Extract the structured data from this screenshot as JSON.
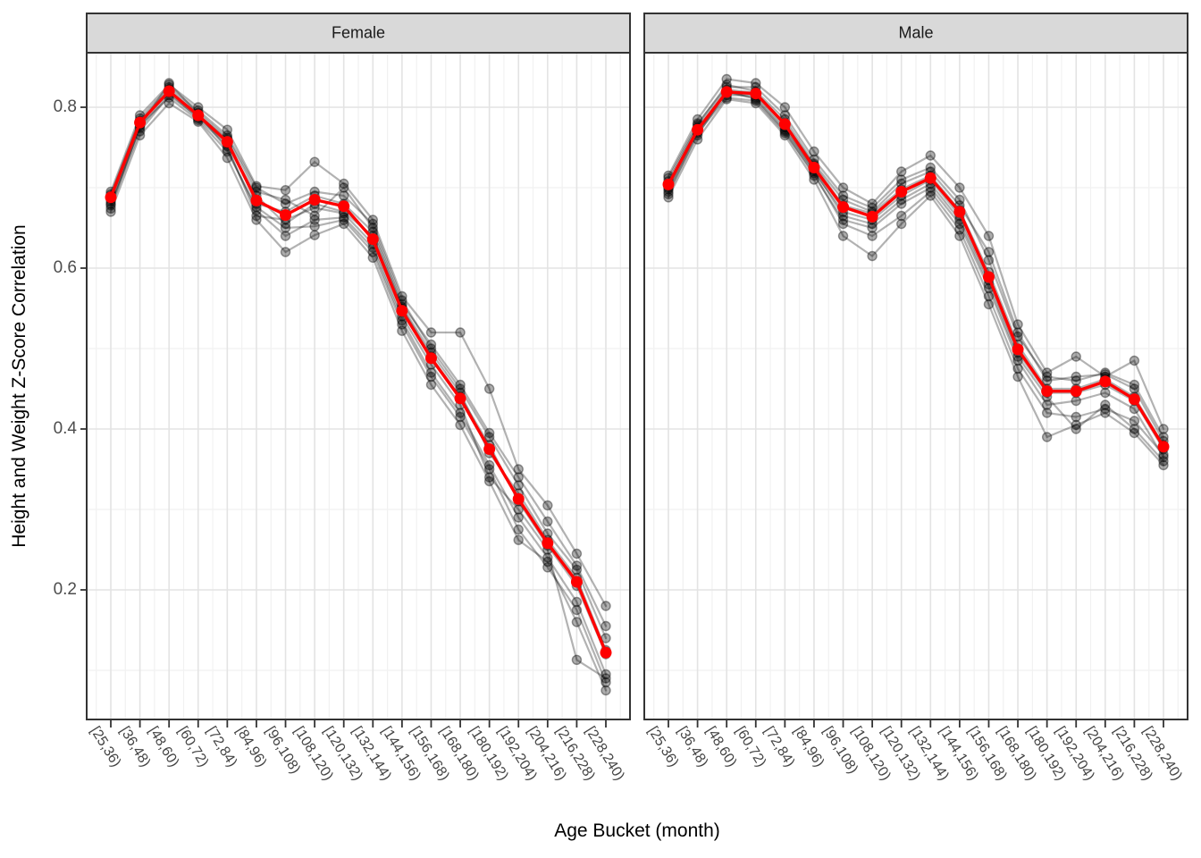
{
  "figure": {
    "y_axis_title": "Height and Weight Z-Score Correlation",
    "x_axis_title": "Age Bucket (month)",
    "facets": [
      "Female",
      "Male"
    ]
  },
  "theme": {
    "mean_color": "#FF0000",
    "individual_color": "#000000",
    "individual_alpha": 0.3,
    "strip_fill": "#D9D9D9",
    "panel_border": "#333333",
    "grid_major": "#E3E3E3",
    "grid_minor": "#F1F1F1",
    "tick_color": "#333333",
    "tick_text_color": "#4D4D4D"
  },
  "chart_data": {
    "type": "line",
    "title": "",
    "xlabel": "Age Bucket (month)",
    "ylabel": "Height and Weight Z-Score Correlation",
    "legend_position": "none",
    "grid": true,
    "facet_labels": [
      "Female",
      "Male"
    ],
    "categories": [
      "[25,36)",
      "[36,48)",
      "[48,60)",
      "[60,72)",
      "[72,84)",
      "[84,96)",
      "[96,108)",
      "[108,120)",
      "[120,132)",
      "[132,144)",
      "[144,156)",
      "[156,168)",
      "[168,180)",
      "[180,192)",
      "[192,204)",
      "[204,216)",
      "[216,228)",
      "[228,240)"
    ],
    "y_ticks": [
      0.2,
      0.4,
      0.6,
      0.8
    ],
    "y_minor_ticks": [
      0.1,
      0.3,
      0.5,
      0.7
    ],
    "ylim": [
      0.04,
      0.868
    ],
    "panels": [
      {
        "facet": "Female",
        "mean": [
          0.688,
          0.781,
          0.82,
          0.79,
          0.757,
          0.684,
          0.666,
          0.685,
          0.677,
          0.636,
          0.547,
          0.488,
          0.438,
          0.375,
          0.313,
          0.258,
          0.21,
          0.122
        ],
        "individuals": [
          [
            0.678,
            0.77,
            0.815,
            0.788,
            0.755,
            0.69,
            0.655,
            0.68,
            0.67,
            0.64,
            0.55,
            0.49,
            0.44,
            0.38,
            0.31,
            0.255,
            0.205,
            0.12
          ],
          [
            0.692,
            0.786,
            0.825,
            0.796,
            0.765,
            0.7,
            0.68,
            0.695,
            0.69,
            0.655,
            0.56,
            0.5,
            0.45,
            0.39,
            0.33,
            0.27,
            0.225,
            0.14
          ],
          [
            0.683,
            0.776,
            0.83,
            0.792,
            0.748,
            0.672,
            0.64,
            0.66,
            0.663,
            0.625,
            0.535,
            0.47,
            0.42,
            0.355,
            0.29,
            0.24,
            0.185,
            0.095
          ],
          [
            0.67,
            0.765,
            0.805,
            0.782,
            0.737,
            0.66,
            0.62,
            0.641,
            0.655,
            0.613,
            0.522,
            0.455,
            0.405,
            0.335,
            0.262,
            0.235,
            0.16,
            0.075
          ],
          [
            0.695,
            0.79,
            0.828,
            0.8,
            0.772,
            0.702,
            0.697,
            0.732,
            0.705,
            0.66,
            0.565,
            0.52,
            0.52,
            0.45,
            0.35,
            0.305,
            0.245,
            0.18
          ],
          [
            0.686,
            0.78,
            0.82,
            0.79,
            0.76,
            0.68,
            0.67,
            0.69,
            0.68,
            0.645,
            0.552,
            0.495,
            0.445,
            0.37,
            0.32,
            0.262,
            0.215,
            0.125
          ],
          [
            0.68,
            0.774,
            0.818,
            0.786,
            0.752,
            0.665,
            0.66,
            0.675,
            0.668,
            0.63,
            0.54,
            0.48,
            0.43,
            0.34,
            0.3,
            0.25,
            0.113,
            0.09
          ],
          [
            0.69,
            0.783,
            0.822,
            0.793,
            0.762,
            0.695,
            0.685,
            0.665,
            0.7,
            0.65,
            0.555,
            0.505,
            0.455,
            0.395,
            0.34,
            0.285,
            0.23,
            0.155
          ],
          [
            0.674,
            0.778,
            0.812,
            0.784,
            0.745,
            0.676,
            0.65,
            0.652,
            0.66,
            0.62,
            0.53,
            0.465,
            0.415,
            0.35,
            0.275,
            0.228,
            0.175,
            0.085
          ]
        ]
      },
      {
        "facet": "Male",
        "mean": [
          0.704,
          0.772,
          0.819,
          0.817,
          0.779,
          0.725,
          0.676,
          0.664,
          0.695,
          0.712,
          0.67,
          0.589,
          0.499,
          0.447,
          0.447,
          0.459,
          0.437,
          0.378
        ],
        "individuals": [
          [
            0.7,
            0.77,
            0.815,
            0.815,
            0.775,
            0.72,
            0.67,
            0.66,
            0.69,
            0.71,
            0.665,
            0.585,
            0.495,
            0.445,
            0.445,
            0.455,
            0.435,
            0.375
          ],
          [
            0.712,
            0.78,
            0.825,
            0.825,
            0.79,
            0.735,
            0.69,
            0.675,
            0.71,
            0.725,
            0.685,
            0.61,
            0.515,
            0.465,
            0.46,
            0.47,
            0.455,
            0.39
          ],
          [
            0.695,
            0.765,
            0.82,
            0.81,
            0.77,
            0.715,
            0.66,
            0.65,
            0.68,
            0.7,
            0.655,
            0.575,
            0.485,
            0.43,
            0.435,
            0.445,
            0.425,
            0.365
          ],
          [
            0.688,
            0.76,
            0.81,
            0.805,
            0.765,
            0.71,
            0.64,
            0.615,
            0.655,
            0.69,
            0.64,
            0.555,
            0.465,
            0.39,
            0.405,
            0.42,
            0.395,
            0.355
          ],
          [
            0.715,
            0.785,
            0.835,
            0.83,
            0.8,
            0.745,
            0.7,
            0.68,
            0.72,
            0.74,
            0.7,
            0.64,
            0.53,
            0.47,
            0.49,
            0.465,
            0.485,
            0.4
          ],
          [
            0.705,
            0.775,
            0.822,
            0.818,
            0.78,
            0.728,
            0.678,
            0.668,
            0.698,
            0.715,
            0.672,
            0.595,
            0.505,
            0.45,
            0.45,
            0.462,
            0.44,
            0.38
          ],
          [
            0.698,
            0.772,
            0.818,
            0.812,
            0.772,
            0.722,
            0.665,
            0.655,
            0.685,
            0.705,
            0.66,
            0.58,
            0.49,
            0.44,
            0.4,
            0.43,
            0.4,
            0.36
          ],
          [
            0.708,
            0.778,
            0.828,
            0.82,
            0.785,
            0.73,
            0.685,
            0.67,
            0.705,
            0.72,
            0.678,
            0.62,
            0.52,
            0.46,
            0.465,
            0.468,
            0.45,
            0.385
          ],
          [
            0.692,
            0.768,
            0.812,
            0.808,
            0.768,
            0.718,
            0.655,
            0.64,
            0.665,
            0.695,
            0.648,
            0.565,
            0.475,
            0.42,
            0.415,
            0.425,
            0.41,
            0.368
          ]
        ]
      }
    ]
  }
}
